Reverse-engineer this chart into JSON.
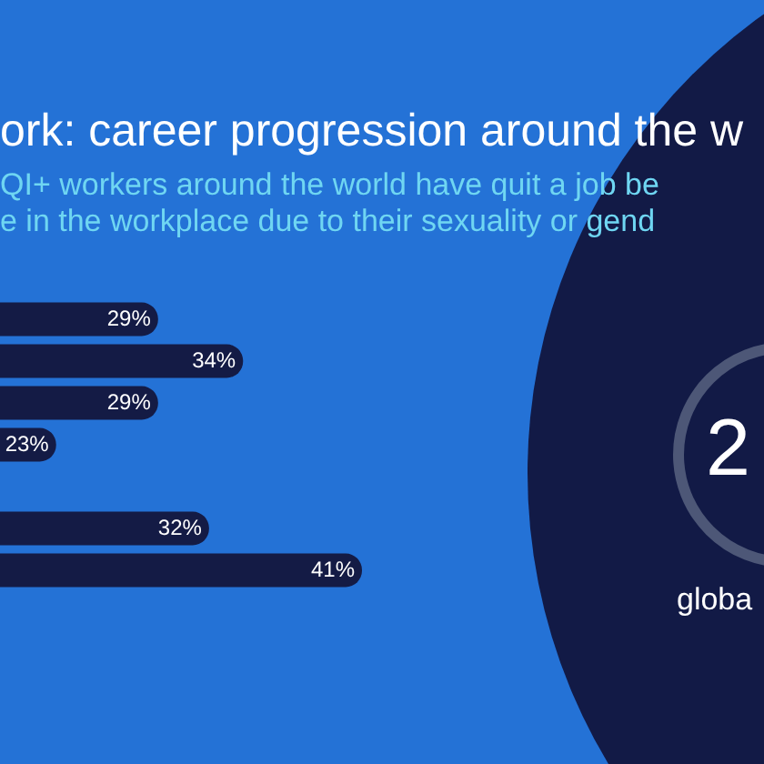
{
  "chart_data": [
    {
      "type": "bar",
      "orientation": "horizontal",
      "title": "ork: career progression around the w",
      "subtitle": "QI+ workers around the world have quit a job be\ne in the workplace due to their sexuality or gend",
      "categories": [
        null,
        null,
        null,
        null
      ],
      "values": [
        29,
        34,
        29,
        23
      ],
      "value_labels": [
        "29%",
        "34%",
        "29%",
        "23%"
      ],
      "color": "#141b45",
      "annotations": [
        "2",
        "globa"
      ]
    },
    {
      "type": "bar",
      "orientation": "horizontal",
      "categories": [
        null,
        null
      ],
      "values": [
        32,
        41
      ],
      "value_labels": [
        "32%",
        "41%"
      ],
      "color": "#141b45"
    }
  ]
}
